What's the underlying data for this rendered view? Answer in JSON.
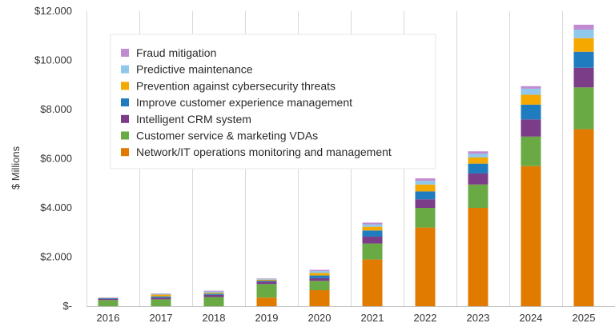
{
  "chart_data": {
    "type": "bar",
    "stacked": true,
    "title": "",
    "xlabel": "",
    "ylabel": "$ Millions",
    "ylim": [
      0,
      12000
    ],
    "yticks": [
      0,
      2000,
      4000,
      6000,
      8000,
      10000,
      12000
    ],
    "ytick_labels": [
      "$-",
      "$2.000",
      "$4.000",
      "$6.000",
      "$8.000",
      "$10.000",
      "$12.000"
    ],
    "categories": [
      "2016",
      "2017",
      "2018",
      "2019",
      "2020",
      "2021",
      "2022",
      "2023",
      "2024",
      "2025"
    ],
    "legend_position": "top-left",
    "grid": "vertical",
    "series": [
      {
        "name": "Network/IT operations monitoring and management",
        "color": "#E07B00",
        "values": [
          0,
          0,
          0,
          350,
          650,
          1900,
          3200,
          4000,
          5700,
          7200
        ]
      },
      {
        "name": "Customer service & marketing VDAs",
        "color": "#6AAA45",
        "values": [
          250,
          280,
          370,
          550,
          380,
          650,
          800,
          950,
          1200,
          1700
        ]
      },
      {
        "name": "Intelligent CRM system",
        "color": "#7B3D88",
        "values": [
          50,
          70,
          90,
          100,
          110,
          280,
          350,
          450,
          700,
          800
        ]
      },
      {
        "name": "Improve customer experience management",
        "color": "#1F7DBF",
        "values": [
          30,
          50,
          50,
          40,
          110,
          250,
          320,
          400,
          600,
          650
        ]
      },
      {
        "name": "Prevention against cybersecurity threats",
        "color": "#F5A800",
        "values": [
          10,
          70,
          40,
          40,
          100,
          150,
          280,
          250,
          400,
          550
        ]
      },
      {
        "name": "Predictive maintenance",
        "color": "#8FC8EA",
        "values": [
          10,
          30,
          50,
          30,
          80,
          100,
          150,
          150,
          250,
          350
        ]
      },
      {
        "name": "Fraud mitigation",
        "color": "#C08BD0",
        "values": [
          10,
          20,
          30,
          20,
          50,
          70,
          100,
          100,
          100,
          200
        ]
      }
    ]
  }
}
